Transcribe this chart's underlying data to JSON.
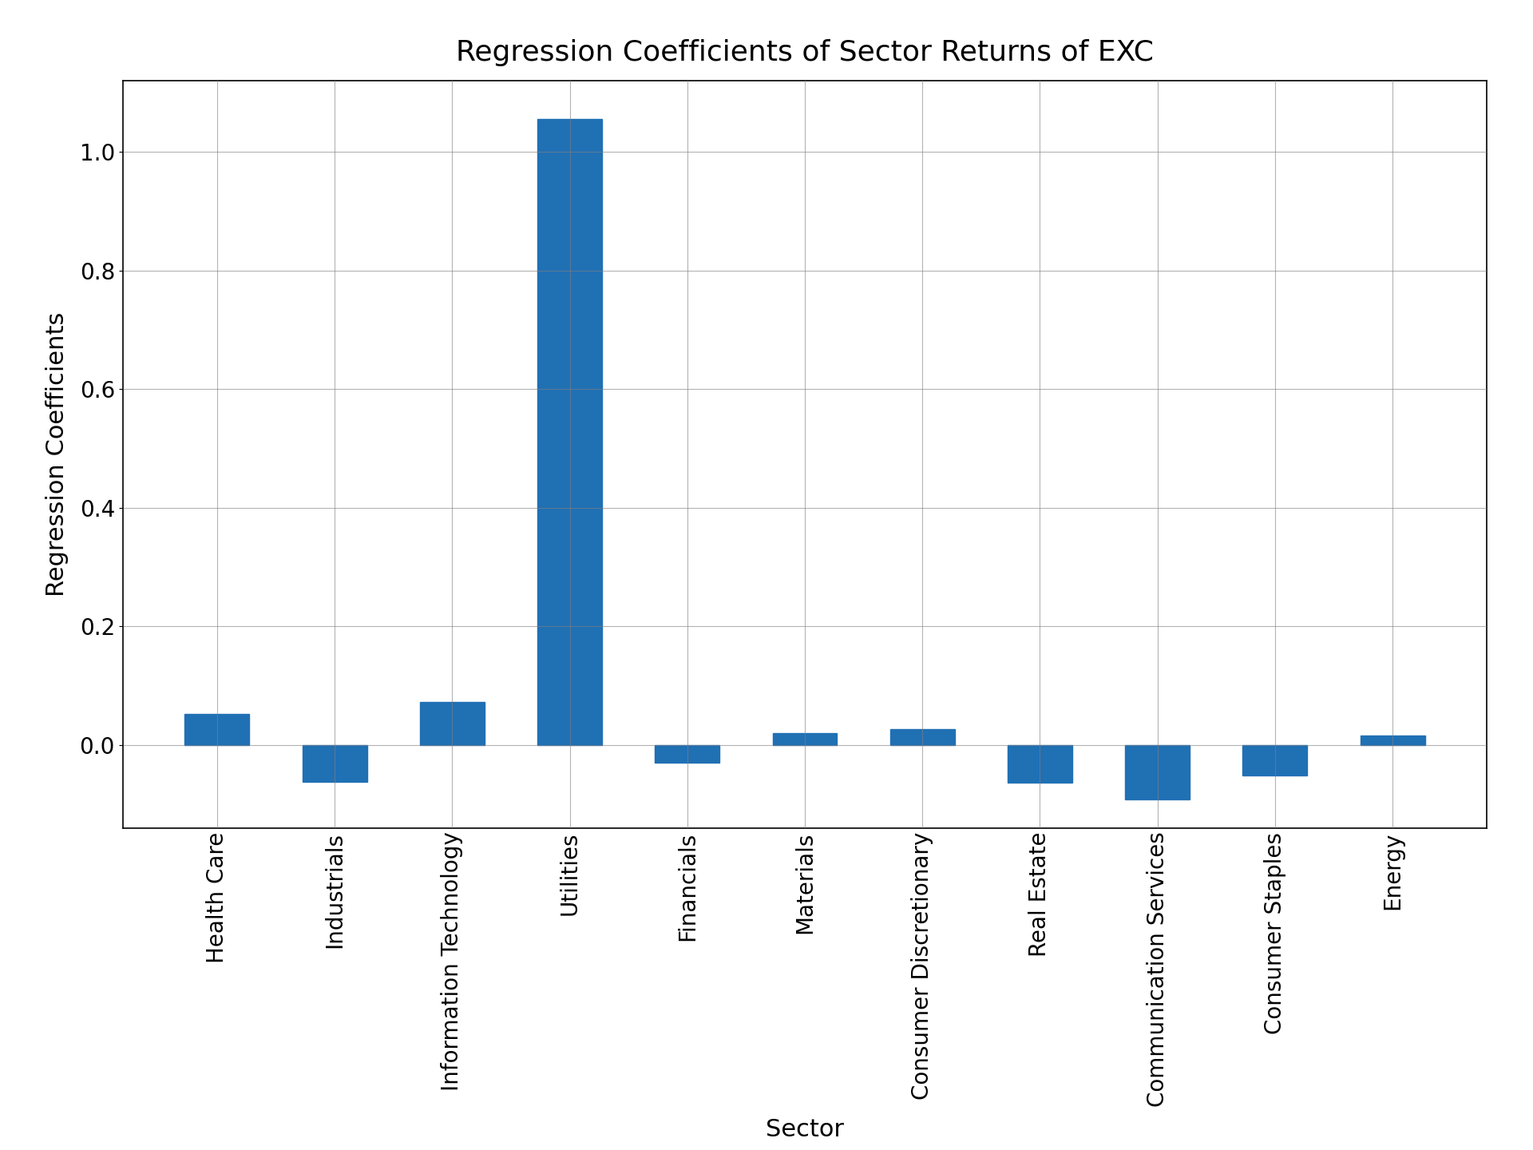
{
  "categories": [
    "Health Care",
    "Industrials",
    "Information Technology",
    "Utilities",
    "Financials",
    "Materials",
    "Consumer Discretionary",
    "Real Estate",
    "Communication Services",
    "Consumer Staples",
    "Energy"
  ],
  "values": [
    0.052,
    -0.062,
    0.072,
    1.055,
    -0.03,
    0.02,
    0.027,
    -0.063,
    -0.092,
    -0.052,
    0.016
  ],
  "bar_color": "#2070b4",
  "title": "Regression Coefficients of Sector Returns of EXC",
  "xlabel": "Sector",
  "ylabel": "Regression Coefficients",
  "title_fontsize": 26,
  "label_fontsize": 22,
  "tick_fontsize": 20,
  "background_color": "#ffffff",
  "grid": true,
  "ylim_min": -0.14,
  "ylim_max": 1.12,
  "bar_width": 0.55
}
